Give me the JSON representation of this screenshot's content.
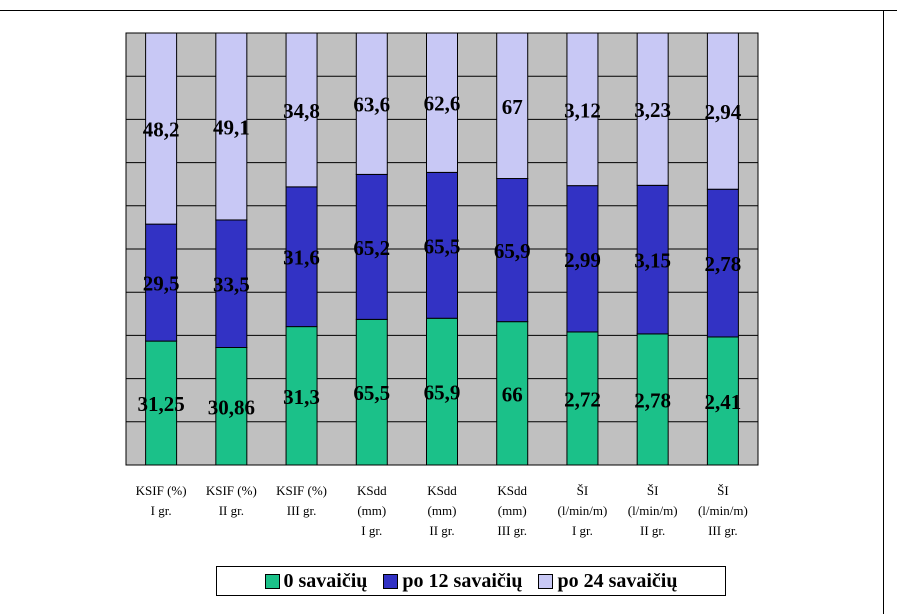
{
  "chart_data": {
    "type": "bar",
    "stacked": true,
    "percent_stacked": true,
    "grid": true,
    "legend_position": "bottom",
    "categories": [
      [
        "KSIF (%)",
        "I gr."
      ],
      [
        "KSIF (%)",
        "II gr."
      ],
      [
        "KSIF (%)",
        "III gr."
      ],
      [
        "KSdd",
        "(mm)",
        "I gr."
      ],
      [
        "KSdd",
        "(mm)",
        "II gr."
      ],
      [
        "KSdd",
        "(mm)",
        "III gr."
      ],
      [
        "ŠI",
        "(l/min/m)",
        "I gr."
      ],
      [
        "ŠI",
        "(l/min/m)",
        "II gr."
      ],
      [
        "ŠI",
        "(l/min/m)",
        "III gr."
      ]
    ],
    "series": [
      {
        "name": "0 savaičių",
        "color": "#1bc189",
        "values": [
          31.25,
          30.86,
          31.3,
          65.5,
          65.9,
          66,
          2.72,
          2.78,
          2.41
        ],
        "labels": [
          "31,25",
          "30,86",
          "31,3",
          "65,5",
          "65,9",
          "66",
          "2,72",
          "2,78",
          "2,41"
        ]
      },
      {
        "name": "po 12 savaičių",
        "color": "#3232c4",
        "values": [
          29.5,
          33.5,
          31.6,
          65.2,
          65.5,
          65.9,
          2.99,
          3.15,
          2.78
        ],
        "labels": [
          "29,5",
          "33,5",
          "31,6",
          "65,2",
          "65,5",
          "65,9",
          "2,99",
          "3,15",
          "2,78"
        ]
      },
      {
        "name": "po 24 savaičių",
        "color": "#c8c8f5",
        "values": [
          48.2,
          49.1,
          34.8,
          63.6,
          62.6,
          67,
          3.12,
          3.23,
          2.94
        ],
        "labels": [
          "48,2",
          "49,1",
          "34,8",
          "63,6",
          "62,6",
          "67",
          "3,12",
          "3,23",
          "2,94"
        ]
      }
    ],
    "plot_background": "#c0c0c0"
  }
}
